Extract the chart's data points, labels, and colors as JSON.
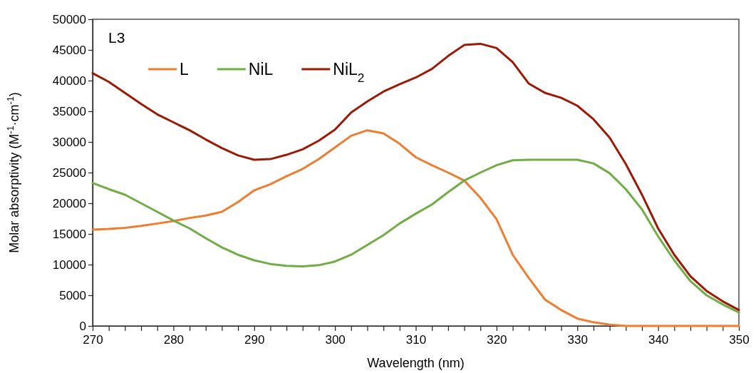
{
  "chart_data": {
    "type": "line",
    "xlabel": "Wavelength  (nm)",
    "ylabel": "Molar absorptivity (M$^{-1}$·cm$^{-1}$)",
    "annotations": [
      "L3"
    ],
    "x": [
      270,
      272,
      274,
      276,
      278,
      280,
      282,
      284,
      286,
      288,
      290,
      292,
      294,
      296,
      298,
      300,
      302,
      304,
      306,
      308,
      310,
      312,
      314,
      316,
      318,
      320,
      322,
      324,
      326,
      328,
      330,
      332,
      334,
      336,
      338,
      340,
      342,
      344,
      346,
      348,
      350
    ],
    "series": [
      {
        "name": "L",
        "color": "#ed7d31",
        "values": [
          15700,
          15800,
          16000,
          16300,
          16700,
          17100,
          17600,
          18000,
          18600,
          20200,
          22100,
          23100,
          24400,
          25600,
          27200,
          29100,
          31000,
          31900,
          31400,
          29700,
          27500,
          26200,
          25000,
          23700,
          20900,
          17400,
          11600,
          7800,
          4300,
          2600,
          1200,
          600,
          200,
          0,
          0,
          0,
          0,
          0,
          0,
          0,
          0
        ]
      },
      {
        "name": "NiL",
        "color": "#70ad47",
        "values": [
          23300,
          22300,
          21400,
          20000,
          18600,
          17200,
          15900,
          14300,
          12800,
          11600,
          10700,
          10100,
          9800,
          9700,
          9900,
          10500,
          11600,
          13200,
          14800,
          16700,
          18300,
          19800,
          21800,
          23700,
          25000,
          26200,
          27000,
          27100,
          27100,
          27100,
          27100,
          26500,
          24900,
          22300,
          19000,
          14600,
          10700,
          7300,
          5000,
          3500,
          2200
        ]
      },
      {
        "name": "NiL$_{2}$",
        "color": "#9a1a06",
        "values": [
          41200,
          39800,
          38000,
          36200,
          34500,
          33200,
          31900,
          30400,
          29000,
          27800,
          27100,
          27200,
          27900,
          28800,
          30200,
          32000,
          34800,
          36600,
          38200,
          39400,
          40500,
          41900,
          44000,
          45800,
          46000,
          45300,
          43000,
          39500,
          38000,
          37200,
          35900,
          33700,
          30700,
          26400,
          21400,
          15900,
          11600,
          8100,
          5700,
          4000,
          2600
        ]
      }
    ],
    "xlim": [
      270,
      350
    ],
    "xticks": [
      270,
      {
        "value": 272,
        "label": null
      },
      {
        "value": 274,
        "label": null
      },
      {
        "value": 276,
        "label": null
      },
      {
        "value": 278,
        "label": null
      },
      280,
      {
        "value": 282,
        "label": null
      },
      {
        "value": 284,
        "label": null
      },
      {
        "value": 286,
        "label": null
      },
      {
        "value": 288,
        "label": null
      },
      290,
      {
        "value": 292,
        "label": null
      },
      {
        "value": 294,
        "label": null
      },
      {
        "value": 296,
        "label": null
      },
      {
        "value": 298,
        "label": null
      },
      300,
      {
        "value": 302,
        "label": null
      },
      {
        "value": 304,
        "label": null
      },
      {
        "value": 306,
        "label": null
      },
      {
        "value": 308,
        "label": null
      },
      310,
      {
        "value": 312,
        "label": null
      },
      {
        "value": 314,
        "label": null
      },
      {
        "value": 316,
        "label": null
      },
      {
        "value": 318,
        "label": null
      },
      320,
      {
        "value": 322,
        "label": null
      },
      {
        "value": 324,
        "label": null
      },
      {
        "value": 326,
        "label": null
      },
      {
        "value": 328,
        "label": null
      },
      330,
      {
        "value": 332,
        "label": null
      },
      {
        "value": 334,
        "label": null
      },
      {
        "value": 336,
        "label": null
      },
      {
        "value": 338,
        "label": null
      },
      340,
      {
        "value": 342,
        "label": null
      },
      {
        "value": 344,
        "label": null
      },
      {
        "value": 346,
        "label": null
      },
      {
        "value": 348,
        "label": null
      },
      350
    ],
    "ylim": [
      0,
      50000
    ],
    "yticks": [
      0,
      5000,
      10000,
      15000,
      20000,
      25000,
      30000,
      35000,
      40000,
      45000,
      50000
    ],
    "grid": false,
    "legend": "top left",
    "line_style": "solid",
    "marker": "none"
  }
}
